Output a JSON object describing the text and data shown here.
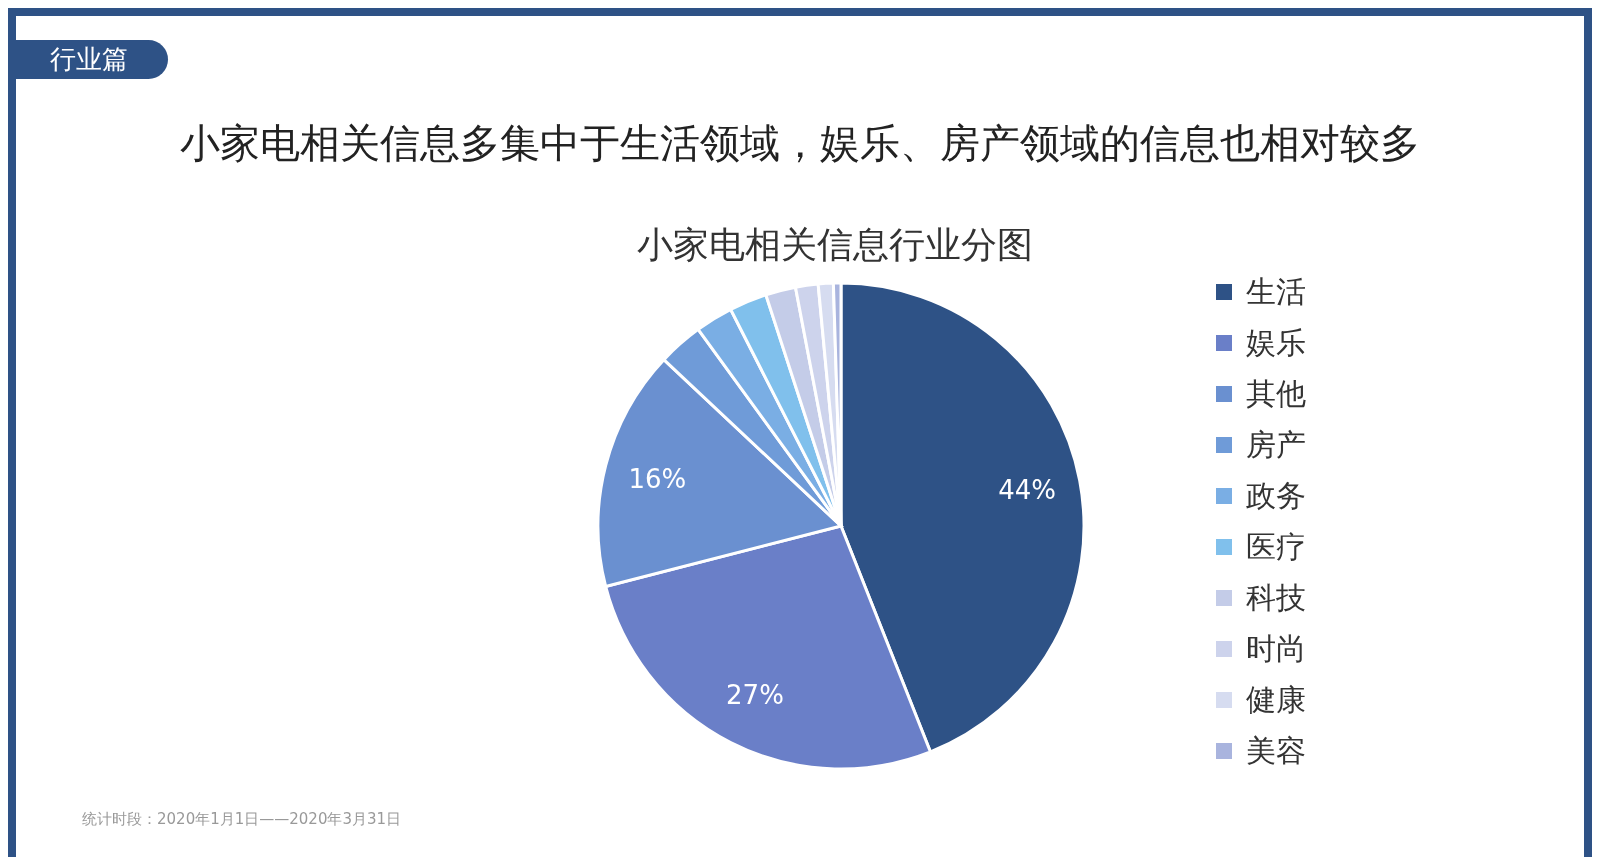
{
  "chart_data": {
    "type": "pie",
    "title": "小家电相关信息多集中于生活领域，娱乐、房产领域的信息也相对较多",
    "subtitle": "小家电相关信息行业分图",
    "categories": [
      "生活",
      "娱乐",
      "其他",
      "房产",
      "政务",
      "医疗",
      "科技",
      "时尚",
      "健康",
      "美容"
    ],
    "values": [
      44,
      27,
      16,
      3,
      2.5,
      2.5,
      2,
      1.5,
      1,
      0.5
    ],
    "colors": [
      "#2e5286",
      "#6a7fc8",
      "#6a90d0",
      "#6f9bd8",
      "#7aaee4",
      "#80c0ec",
      "#c4cce8",
      "#cdd3ec",
      "#d6dcf0",
      "#a9b4de"
    ],
    "value_labels": [
      "44%",
      "27%",
      "16%",
      null,
      null,
      null,
      null,
      null,
      null,
      null
    ],
    "legend": "right",
    "annotations": [
      "行业篇",
      "统计时段：2020年1月1日——2020年3月31日"
    ]
  }
}
